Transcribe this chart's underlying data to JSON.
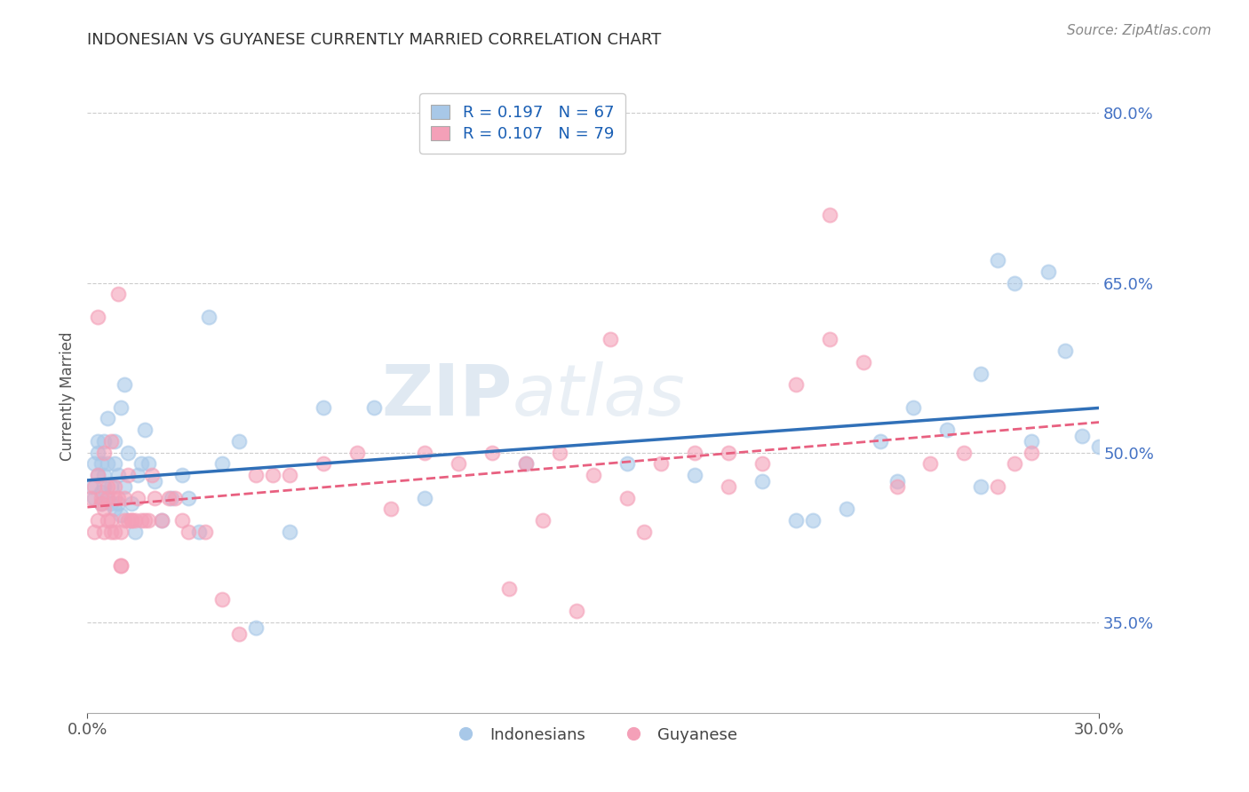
{
  "title": "INDONESIAN VS GUYANESE CURRENTLY MARRIED CORRELATION CHART",
  "source_text": "Source: ZipAtlas.com",
  "ylabel": "Currently Married",
  "xlim": [
    0.0,
    0.3
  ],
  "ylim": [
    0.27,
    0.83
  ],
  "ytick_labels": [
    "35.0%",
    "50.0%",
    "65.0%",
    "80.0%"
  ],
  "ytick_values": [
    0.35,
    0.5,
    0.65,
    0.8
  ],
  "indonesian_color": "#a8c8e8",
  "guyanese_color": "#f4a0b8",
  "indonesian_line_color": "#3070b8",
  "guyanese_line_color": "#e86080",
  "watermark_part1": "ZIP",
  "watermark_part2": "atlas",
  "legend_R1": "R = 0.197",
  "legend_N1": "N = 67",
  "legend_R2": "R = 0.107",
  "legend_N2": "N = 79",
  "indonesian_x": [
    0.001,
    0.002,
    0.002,
    0.003,
    0.003,
    0.003,
    0.004,
    0.004,
    0.004,
    0.005,
    0.005,
    0.005,
    0.006,
    0.006,
    0.006,
    0.007,
    0.007,
    0.008,
    0.008,
    0.008,
    0.009,
    0.009,
    0.01,
    0.01,
    0.011,
    0.011,
    0.012,
    0.013,
    0.014,
    0.015,
    0.016,
    0.017,
    0.018,
    0.02,
    0.022,
    0.025,
    0.028,
    0.03,
    0.033,
    0.036,
    0.04,
    0.045,
    0.05,
    0.06,
    0.07,
    0.085,
    0.1,
    0.13,
    0.16,
    0.18,
    0.2,
    0.215,
    0.225,
    0.235,
    0.245,
    0.255,
    0.265,
    0.27,
    0.275,
    0.28,
    0.285,
    0.29,
    0.295,
    0.3,
    0.265,
    0.24,
    0.21
  ],
  "indonesian_y": [
    0.47,
    0.46,
    0.49,
    0.48,
    0.5,
    0.51,
    0.455,
    0.49,
    0.465,
    0.47,
    0.48,
    0.51,
    0.46,
    0.49,
    0.53,
    0.455,
    0.47,
    0.45,
    0.51,
    0.49,
    0.455,
    0.48,
    0.445,
    0.54,
    0.56,
    0.47,
    0.5,
    0.455,
    0.43,
    0.48,
    0.49,
    0.52,
    0.49,
    0.475,
    0.44,
    0.46,
    0.48,
    0.46,
    0.43,
    0.62,
    0.49,
    0.51,
    0.345,
    0.43,
    0.54,
    0.54,
    0.46,
    0.49,
    0.49,
    0.48,
    0.475,
    0.44,
    0.45,
    0.51,
    0.54,
    0.52,
    0.57,
    0.67,
    0.65,
    0.51,
    0.66,
    0.59,
    0.515,
    0.505,
    0.47,
    0.475,
    0.44
  ],
  "guyanese_x": [
    0.001,
    0.002,
    0.002,
    0.003,
    0.003,
    0.003,
    0.004,
    0.004,
    0.005,
    0.005,
    0.005,
    0.006,
    0.006,
    0.006,
    0.007,
    0.007,
    0.007,
    0.008,
    0.008,
    0.008,
    0.009,
    0.009,
    0.01,
    0.01,
    0.01,
    0.011,
    0.011,
    0.012,
    0.012,
    0.013,
    0.013,
    0.014,
    0.015,
    0.016,
    0.017,
    0.018,
    0.019,
    0.02,
    0.022,
    0.024,
    0.026,
    0.028,
    0.03,
    0.035,
    0.04,
    0.045,
    0.05,
    0.055,
    0.06,
    0.07,
    0.08,
    0.09,
    0.1,
    0.11,
    0.12,
    0.13,
    0.14,
    0.15,
    0.16,
    0.17,
    0.18,
    0.19,
    0.2,
    0.21,
    0.22,
    0.23,
    0.24,
    0.25,
    0.26,
    0.27,
    0.275,
    0.28,
    0.22,
    0.19,
    0.165,
    0.155,
    0.145,
    0.135,
    0.125
  ],
  "guyanese_y": [
    0.46,
    0.43,
    0.47,
    0.48,
    0.44,
    0.62,
    0.455,
    0.46,
    0.43,
    0.45,
    0.5,
    0.44,
    0.47,
    0.46,
    0.43,
    0.51,
    0.44,
    0.46,
    0.43,
    0.47,
    0.64,
    0.46,
    0.4,
    0.43,
    0.4,
    0.46,
    0.44,
    0.48,
    0.44,
    0.44,
    0.44,
    0.44,
    0.46,
    0.44,
    0.44,
    0.44,
    0.48,
    0.46,
    0.44,
    0.46,
    0.46,
    0.44,
    0.43,
    0.43,
    0.37,
    0.34,
    0.48,
    0.48,
    0.48,
    0.49,
    0.5,
    0.45,
    0.5,
    0.49,
    0.5,
    0.49,
    0.5,
    0.48,
    0.46,
    0.49,
    0.5,
    0.5,
    0.49,
    0.56,
    0.6,
    0.58,
    0.47,
    0.49,
    0.5,
    0.47,
    0.49,
    0.5,
    0.71,
    0.47,
    0.43,
    0.6,
    0.36,
    0.44,
    0.38
  ]
}
